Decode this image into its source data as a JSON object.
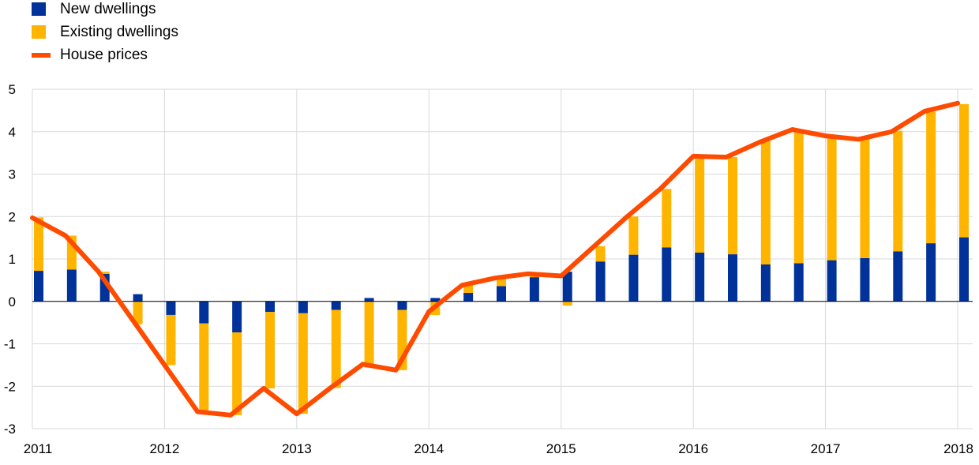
{
  "legend": {
    "new": {
      "label": "New dwellings",
      "color": "#003299"
    },
    "existing": {
      "label": "Existing dwellings",
      "color": "#FFB400"
    },
    "prices": {
      "label": "House prices",
      "color": "#FF4B00"
    }
  },
  "chart_data": {
    "type": "bar",
    "title": "",
    "xlabel": "",
    "ylabel": "",
    "ylim": [
      -3,
      5
    ],
    "yticks": [
      5,
      4,
      3,
      2,
      1,
      0,
      -1,
      -2,
      -3
    ],
    "grid": true,
    "legend_position": "top-left",
    "xtick_labels": [
      "2011",
      "2012",
      "2013",
      "2014",
      "2015",
      "2016",
      "2017",
      "2018"
    ],
    "categories": [
      "2011 Q1",
      "2011 Q2",
      "2011 Q3",
      "2011 Q4",
      "2012 Q1",
      "2012 Q2",
      "2012 Q3",
      "2012 Q4",
      "2013 Q1",
      "2013 Q2",
      "2013 Q3",
      "2013 Q4",
      "2014 Q1",
      "2014 Q2",
      "2014 Q3",
      "2014 Q4",
      "2015 Q1",
      "2015 Q2",
      "2015 Q3",
      "2015 Q4",
      "2016 Q1",
      "2016 Q2",
      "2016 Q3",
      "2016 Q4",
      "2017 Q1",
      "2017 Q2",
      "2017 Q3",
      "2017 Q4",
      "2018 Q1"
    ],
    "series": [
      {
        "name": "New dwellings",
        "type": "bar",
        "color": "#003299",
        "values": [
          0.72,
          0.75,
          0.65,
          0.17,
          -0.32,
          -0.52,
          -0.73,
          -0.25,
          -0.28,
          -0.2,
          0.08,
          -0.2,
          0.08,
          0.2,
          0.36,
          0.57,
          0.7,
          0.94,
          1.1,
          1.27,
          1.15,
          1.11,
          0.87,
          0.9,
          0.97,
          1.02,
          1.18,
          1.37,
          1.51
        ]
      },
      {
        "name": "Existing dwellings",
        "type": "bar",
        "color": "#FFB400",
        "values": [
          1.26,
          0.8,
          0.05,
          -0.54,
          -1.18,
          -2.08,
          -1.95,
          -1.8,
          -2.37,
          -1.84,
          -1.56,
          -1.42,
          -0.32,
          0.18,
          0.2,
          0.07,
          -0.1,
          0.36,
          0.9,
          1.38,
          2.28,
          2.29,
          2.91,
          3.15,
          2.93,
          2.8,
          2.84,
          3.1,
          3.14
        ]
      },
      {
        "name": "House prices",
        "type": "line",
        "color": "#FF4B00",
        "values": [
          1.97,
          1.55,
          0.7,
          -0.4,
          -1.5,
          -2.6,
          -2.68,
          -2.05,
          -2.65,
          -2.05,
          -1.48,
          -1.62,
          -0.24,
          0.38,
          0.55,
          0.65,
          0.6,
          1.3,
          2.0,
          2.65,
          3.42,
          3.4,
          3.75,
          4.05,
          3.9,
          3.82,
          4.0,
          4.48,
          4.67
        ]
      }
    ]
  }
}
